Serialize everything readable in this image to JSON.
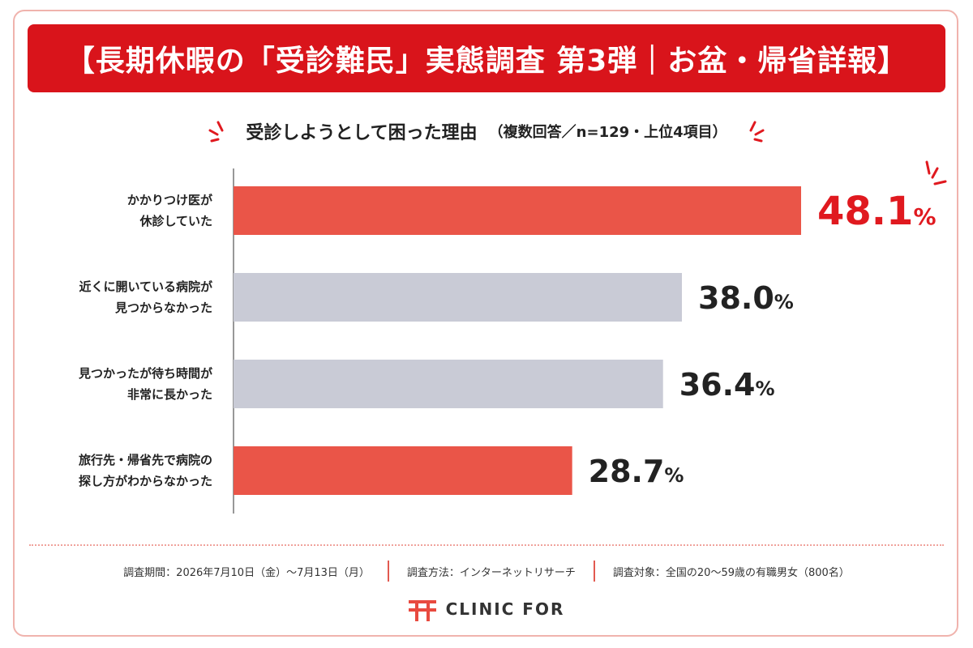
{
  "header": {
    "title": "【長期休暇の「受診難民」実態調査 第3弾｜お盆・帰省詳報】"
  },
  "subtitle": {
    "main": "受診しようとして困った理由",
    "note": "（複数回答／n=129・上位4項目）"
  },
  "colors": {
    "brand_red": "#d9141b",
    "highlight_bar": "#ea5548",
    "neutral_bar": "#c9cbd6",
    "highlight_value_text": "#e0191f",
    "value_text": "#222222",
    "axis": "#777777",
    "dotted_rule": "#f0a29b"
  },
  "chart_data": {
    "type": "bar",
    "orientation": "horizontal",
    "title": "受診しようとして困った理由",
    "categories": [
      [
        "かかりつけ医が",
        "休診していた"
      ],
      [
        "近くに開いている病院が",
        "見つからなかった"
      ],
      [
        "見つかったが待ち時間が",
        "非常に長かった"
      ],
      [
        "旅行先・帰省先で病院の",
        "探し方がわからなかった"
      ]
    ],
    "values": [
      48.1,
      38.0,
      36.4,
      28.7
    ],
    "value_labels": [
      "48.1",
      "38.0",
      "36.4",
      "28.7"
    ],
    "unit": "%",
    "highlighted": [
      true,
      false,
      false,
      true
    ],
    "xlim": [
      0,
      50
    ],
    "grid": false,
    "legend": "none"
  },
  "footer": {
    "period": "調査期間：2026年7月10日（金）〜7月13日（月）",
    "method": "調査方法：インターネットリサーチ",
    "target": "調査対象：全国の20〜59歳の有職男女（800名）"
  },
  "brand": {
    "name": "CLINIC FOR",
    "icon": "clinic-for-logo-icon"
  }
}
